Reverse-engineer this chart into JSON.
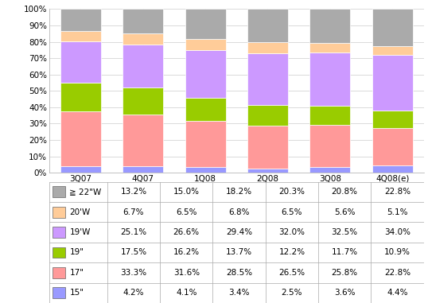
{
  "categories": [
    "3Q07",
    "4Q07",
    "1Q08",
    "2Q08",
    "3Q08",
    "4Q08(e)"
  ],
  "series": [
    {
      "label": "15\"",
      "color": "#9999ff",
      "values": [
        4.2,
        4.1,
        3.4,
        2.5,
        3.6,
        4.4
      ]
    },
    {
      "label": "17\"",
      "color": "#ff9999",
      "values": [
        33.3,
        31.6,
        28.5,
        26.5,
        25.8,
        22.8
      ]
    },
    {
      "label": "19\"",
      "color": "#99cc00",
      "values": [
        17.5,
        16.2,
        13.7,
        12.2,
        11.7,
        10.9
      ]
    },
    {
      "label": "19'W",
      "color": "#cc99ff",
      "values": [
        25.1,
        26.6,
        29.4,
        32.0,
        32.5,
        34.0
      ]
    },
    {
      "label": "20'W",
      "color": "#ffcc99",
      "values": [
        6.7,
        6.5,
        6.8,
        6.5,
        5.6,
        5.1
      ]
    },
    {
      "label": "≧ 22\"W",
      "color": "#aaaaaa",
      "values": [
        13.2,
        15.0,
        18.2,
        20.3,
        20.8,
        22.8
      ]
    }
  ],
  "table_series_order": [
    "≧ 22\"W",
    "20'W",
    "19'W",
    "19\"",
    "17\"",
    "15\""
  ],
  "ylim": [
    0,
    100
  ],
  "yticks": [
    0,
    10,
    20,
    30,
    40,
    50,
    60,
    70,
    80,
    90,
    100
  ],
  "ytick_labels": [
    "0%",
    "10%",
    "20%",
    "30%",
    "40%",
    "50%",
    "60%",
    "70%",
    "80%",
    "90%",
    "100%"
  ],
  "bar_width": 0.65,
  "background_color": "#ffffff",
  "grid_color": "#cccccc",
  "border_color": "#aaaaaa",
  "font_size_ticks": 7.5,
  "font_size_table": 7.5
}
